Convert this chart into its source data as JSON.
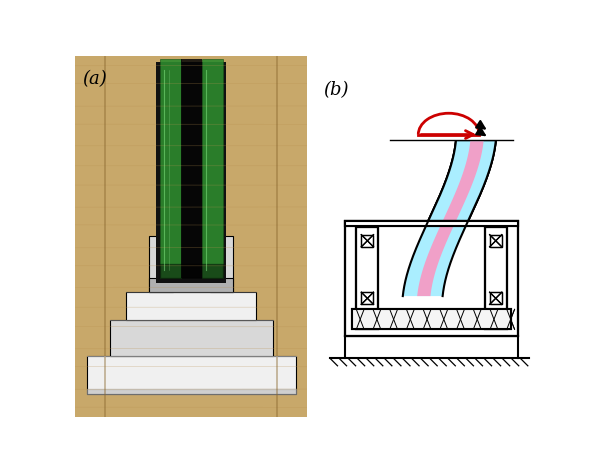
{
  "fig_width": 6.0,
  "fig_height": 4.68,
  "dpi": 100,
  "bg_color": "#ffffff",
  "label_a": "(a)",
  "label_b": "(b)",
  "glass_color_cyan": "#aaeeff",
  "glass_color_pink": "#f0a0c8",
  "line_color_black": "#000000",
  "line_color_red": "#cc0000",
  "wood_bg": "#c8a86a",
  "wood_grain": "#b89050",
  "aluminum_light": "#f0f0f0",
  "aluminum_mid": "#d8d8d8",
  "aluminum_dark": "#b0b0b0",
  "glass_green": "#2d8a2d",
  "glass_green_dark": "#1a5a1a",
  "rubber_black": "#111111"
}
